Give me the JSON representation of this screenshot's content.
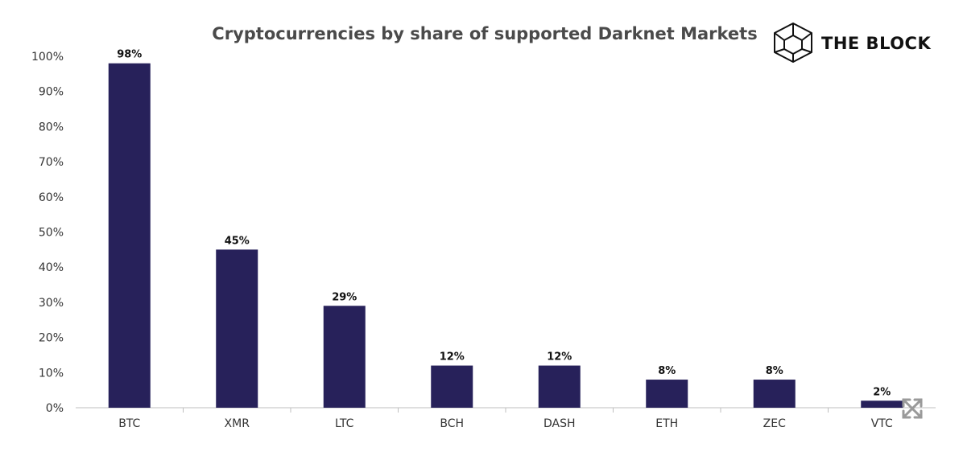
{
  "brand": {
    "name": "THE BLOCK",
    "logo_icon": "cube-icon"
  },
  "chart_data": {
    "type": "bar",
    "title": "Cryptocurrencies by share of supported Darknet Markets",
    "xlabel": "",
    "ylabel": "",
    "categories": [
      "BTC",
      "XMR",
      "LTC",
      "BCH",
      "DASH",
      "ETH",
      "ZEC",
      "VTC"
    ],
    "values": [
      98,
      45,
      29,
      12,
      12,
      8,
      8,
      2
    ],
    "data_labels": [
      "98%",
      "45%",
      "29%",
      "12%",
      "12%",
      "8%",
      "8%",
      "2%"
    ],
    "ylim": [
      0,
      100
    ],
    "yticks": [
      0,
      10,
      20,
      30,
      40,
      50,
      60,
      70,
      80,
      90,
      100
    ],
    "ytick_labels": [
      "0%",
      "10%",
      "20%",
      "30%",
      "40%",
      "50%",
      "60%",
      "70%",
      "80%",
      "90%",
      "100%"
    ],
    "bar_color": "#27215a",
    "grid": false,
    "legend": "none"
  },
  "overlay": {
    "icon": "expand-icon"
  }
}
